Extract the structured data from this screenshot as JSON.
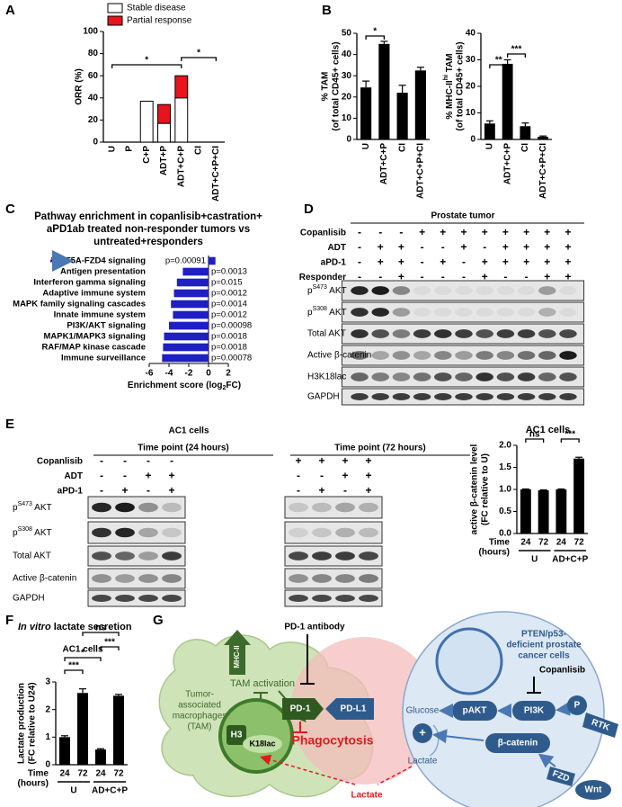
{
  "panel_labels": [
    "A",
    "B",
    "C",
    "D",
    "E",
    "F",
    "G"
  ],
  "chart_data": [
    {
      "type": "bar",
      "stacked": true,
      "y_label": "ORR (%)",
      "categories": [
        "U",
        "P",
        "C+P",
        "ADT+P",
        "ADT+C+P",
        "CI",
        "ADT+C+P+CI"
      ],
      "series": [
        {
          "name": "Stable disease",
          "color": "#ffffff",
          "values": [
            0,
            0,
            37,
            17,
            40,
            0,
            0
          ]
        },
        {
          "name": "Partial response",
          "color": "#e8141b",
          "values": [
            0,
            0,
            0,
            17,
            20,
            0,
            0
          ]
        }
      ],
      "ylim": [
        0,
        100
      ],
      "yticks": [
        0,
        20,
        40,
        60,
        80,
        100
      ],
      "annotations": [
        "*",
        "*"
      ]
    },
    {
      "type": "bar",
      "y_label": [
        "% TAM",
        "(of total CD45+ cells)"
      ],
      "categories": [
        "U",
        "ADT+C+P",
        "CI",
        "ADT+C+P+CI"
      ],
      "values": [
        24.5,
        45,
        22,
        32.5
      ],
      "errors": [
        3,
        1.2,
        3.5,
        1.5
      ],
      "color": "#000000",
      "ylim": [
        0,
        50
      ],
      "yticks": [
        0,
        10,
        20,
        30,
        40,
        50
      ],
      "annotations": [
        "*"
      ]
    },
    {
      "type": "bar",
      "y_label": [
        {
          "text": "% MHC-II",
          "sup": "hi",
          "tail": " TAM"
        },
        "(of total CD45+ cells)"
      ],
      "categories": [
        "U",
        "ADT+C+P",
        "CI",
        "ADT+C+P+CI"
      ],
      "values": [
        6,
        28.5,
        5,
        1
      ],
      "errors": [
        1,
        1.5,
        1.2,
        0.3
      ],
      "color": "#000000",
      "ylim": [
        0,
        40
      ],
      "yticks": [
        0,
        10,
        20,
        30,
        40
      ],
      "annotations": [
        "**",
        "***"
      ]
    },
    {
      "type": "barh",
      "title": [
        "Pathway enrichment in copanlisib+castration+",
        "aPD1ab treated non-responder tumors vs",
        "untreated+responders"
      ],
      "categories": [
        "WNT5A-FZD4 signaling",
        "Antigen presentation",
        "Interferon gamma signaling",
        "Adaptive immune system",
        "MAPK family signaling cascades",
        "Innate immune system",
        "PI3K/AKT signaling",
        "MAPK1/MAPK3 signaling",
        "RAF/MAP kinase cascade",
        "Immune surveillance"
      ],
      "values": [
        0.7,
        -2.6,
        -3.2,
        -3.5,
        -3.8,
        -3.6,
        -4,
        -4.5,
        -4.6,
        -4.7
      ],
      "p_values": [
        "p=0.00091",
        "p=0.0013",
        "p=0.015",
        "p=0.0012",
        "p=0.0014",
        "p=0.0012",
        "p=0.00098",
        "p=0.0018",
        "p=0.0018",
        "p=0.00078"
      ],
      "color": "#1f1fc4",
      "x_label": {
        "text": "Enrichment score (log",
        "sub": "2",
        "tail": "FC)"
      },
      "xlim": [
        -6,
        2
      ],
      "xticks": [
        -6,
        -4,
        -2,
        0,
        2
      ]
    },
    {
      "type": "bar",
      "title": "AC1 cells",
      "y_label": [
        "active β-catenin level",
        "(FC relative to U)"
      ],
      "categories": [
        "24",
        "72",
        "24",
        "72"
      ],
      "groups": [
        "U",
        "AD+C+P"
      ],
      "x_label": [
        "Time",
        "(hours)"
      ],
      "values": [
        1,
        0.98,
        1,
        1.7
      ],
      "errors": [
        0.01,
        0.01,
        0.01,
        0.03
      ],
      "color": "#000000",
      "ylim": [
        0,
        2
      ],
      "yticks": [
        {
          "value": 0,
          "label": "0.0"
        },
        {
          "value": 0.5,
          "label": "0.5"
        },
        {
          "value": 1,
          "label": "1.0"
        },
        {
          "value": 1.5,
          "label": "1.5"
        },
        {
          "value": 2,
          "label": "2.0"
        }
      ],
      "annotations": [
        "ns",
        "***"
      ]
    },
    {
      "type": "bar",
      "title": {
        "italic": "In vitro",
        "tail": " lactate secretion"
      },
      "subtitle": "AC1 cells",
      "y_label": [
        "Lactate production",
        "(FC relative to U24)"
      ],
      "categories": [
        "24",
        "72",
        "24",
        "72"
      ],
      "groups": [
        "U",
        "AD+C+P"
      ],
      "x_label": [
        "Time",
        "(hours)"
      ],
      "values": [
        1,
        2.6,
        0.55,
        2.5
      ],
      "errors": [
        0.05,
        0.15,
        0.03,
        0.05
      ],
      "color": "#000000",
      "ylim": [
        0,
        3
      ],
      "yticks": [
        0,
        1,
        2,
        3
      ],
      "annotations": [
        "***",
        "*",
        "***",
        "ns"
      ]
    }
  ],
  "blot_d": {
    "title": "Prostate tumor",
    "conditions": [
      {
        "name": "Copanlisib",
        "signs": [
          "-",
          "-",
          "-",
          "+",
          "+",
          "+",
          "+",
          "+",
          "+",
          "+",
          "+"
        ]
      },
      {
        "name": "ADT",
        "signs": [
          "-",
          "+",
          "+",
          "-",
          "-",
          "+",
          "-",
          "+",
          "+",
          "+",
          "+"
        ]
      },
      {
        "name": "aPD-1",
        "signs": [
          "-",
          "+",
          "+",
          "-",
          "+",
          "-",
          "+",
          "+",
          "+",
          "+",
          "+"
        ]
      },
      {
        "name": "Responder",
        "signs": [
          "-",
          "-",
          "+",
          "-",
          "-",
          "-",
          "+",
          "-",
          "-",
          "+",
          "+"
        ]
      }
    ],
    "rows": [
      {
        "text": "p",
        "sup": "S473",
        "tail": " AKT"
      },
      {
        "text": "p",
        "sup": "S308",
        "tail": " AKT"
      },
      "Total AKT",
      "Active β-catenin",
      "H3K18lac",
      "GAPDH"
    ]
  },
  "blot_e": {
    "title": "AC1 cells",
    "timepoints": [
      "Time point (24 hours)",
      "Time point (72 hours)"
    ],
    "conditions": [
      {
        "name": "Copanlisib",
        "signs": [
          "-",
          "-",
          "-",
          "-",
          "+",
          "+",
          "+",
          "+"
        ]
      },
      {
        "name": "ADT",
        "signs": [
          "-",
          "-",
          "+",
          "+",
          "-",
          "-",
          "+",
          "+"
        ]
      },
      {
        "name": "aPD-1",
        "signs": [
          "-",
          "+",
          "-",
          "+",
          "-",
          "+",
          "-",
          "+"
        ]
      }
    ],
    "rows": [
      {
        "text": "p",
        "sup": "S473",
        "tail": " AKT"
      },
      {
        "text": "p",
        "sup": "S308",
        "tail": " AKT"
      },
      "Total AKT",
      "Active β-catenin",
      "GAPDH"
    ]
  },
  "diagram_g": {
    "mhc": "MHC-II",
    "pd1_antibody": "PD-1 antibody",
    "tam": [
      "Tumor-",
      "associated",
      "macrophages",
      "(TAM)"
    ],
    "tam_activation": "TAM activation",
    "h3": "H3",
    "k18lac": "K18lac",
    "pd1": "PD-1",
    "pdl1": "PD-L1",
    "phagocytosis": "Phagocytosis",
    "cancer": [
      "PTEN/p53-",
      "deficient prostate",
      "cancer cells"
    ],
    "copanlisib": "Copanlisib",
    "glucose": "Glucose",
    "plus": "+",
    "pakt": "pAKT",
    "pi3k": "PI3K",
    "p": "P",
    "rtk": "RTK",
    "lactate_in": "Lactate",
    "beta_catenin": "β-catenin",
    "fzd": "FZD",
    "wnt": "Wnt",
    "lactate_out": "Lactate"
  }
}
